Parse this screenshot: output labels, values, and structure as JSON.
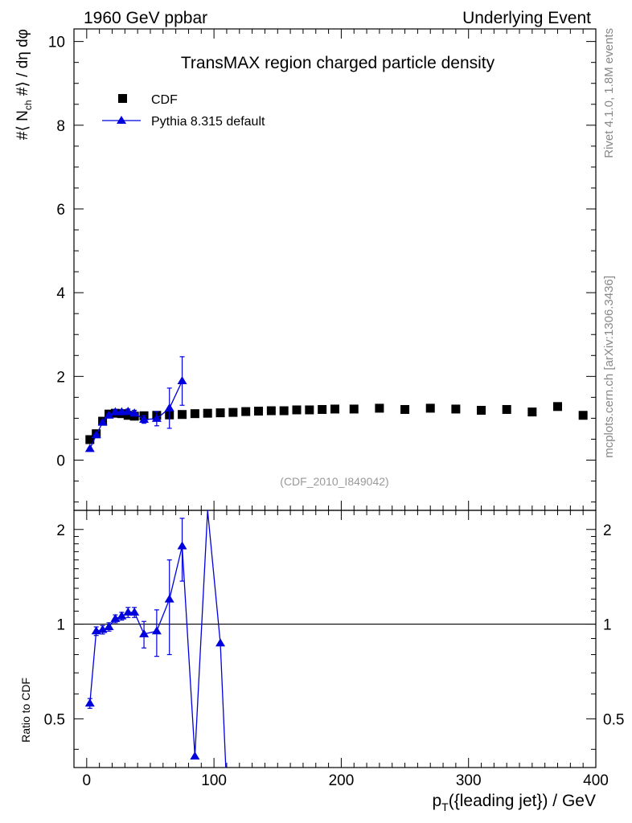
{
  "header": {
    "left": "1960 GeV ppbar",
    "right": "Underlying Event"
  },
  "side": {
    "rivet": "Rivet 4.1.0,  1.8M events",
    "mcplots": "mcplots.cern.ch [arXiv:1306.3436]"
  },
  "labels": {
    "ylabel_main": "#⟨ N_ch #⟩ / dη dφ",
    "ylabel_ratio": "Ratio to CDF",
    "xlabel": "p_T({leading jet}) / GeV"
  },
  "chart_data": {
    "type": "scatter",
    "title": "TransMAX region charged particle density",
    "watermark": "(CDF_2010_I849042)",
    "xlim": [
      -10,
      400
    ],
    "ylim_main": [
      -1.2,
      10.3
    ],
    "ylim_ratio": [
      0.35,
      2.3
    ],
    "x_ticks": [
      "0",
      "100",
      "200",
      "300",
      "400"
    ],
    "y_ticks_main": [
      "0",
      "2",
      "4",
      "6",
      "8",
      "10"
    ],
    "y_ticks_ratio": [
      "0.5",
      "1",
      "2"
    ],
    "series": [
      {
        "name": "CDF",
        "color": "#000000",
        "marker": "square",
        "x": [
          2.5,
          7.5,
          12.5,
          17.5,
          22.5,
          27.5,
          32.5,
          37.5,
          45,
          55,
          65,
          75,
          85,
          95,
          105,
          115,
          125,
          135,
          145,
          155,
          165,
          175,
          185,
          195,
          210,
          230,
          250,
          270,
          290,
          310,
          330,
          350,
          370,
          390
        ],
        "y": [
          0.49,
          0.63,
          0.93,
          1.1,
          1.12,
          1.11,
          1.07,
          1.05,
          1.06,
          1.07,
          1.08,
          1.09,
          1.11,
          1.12,
          1.13,
          1.14,
          1.16,
          1.17,
          1.18,
          1.18,
          1.2,
          1.2,
          1.21,
          1.22,
          1.22,
          1.24,
          1.21,
          1.24,
          1.22,
          1.19,
          1.21,
          1.15,
          1.28,
          1.07
        ]
      },
      {
        "name": "Pythia 8.315 default",
        "color": "#0000dd",
        "marker": "triangle",
        "x": [
          2.5,
          7.5,
          12.5,
          17.5,
          22.5,
          27.5,
          32.5,
          37.5,
          45,
          55,
          65,
          75
        ],
        "y": [
          0.27,
          0.6,
          0.9,
          1.07,
          1.15,
          1.15,
          1.16,
          1.12,
          0.97,
          0.99,
          1.24,
          1.89
        ],
        "yerr": [
          0.02,
          0.03,
          0.04,
          0.04,
          0.05,
          0.05,
          0.06,
          0.07,
          0.09,
          0.17,
          0.48,
          0.58
        ]
      }
    ],
    "ratio": {
      "x": [
        2.5,
        7.5,
        12.5,
        17.5,
        22.5,
        27.5,
        32.5,
        37.5,
        45,
        55,
        65,
        75,
        85,
        95,
        105,
        110
      ],
      "y": [
        0.56,
        0.95,
        0.96,
        0.98,
        1.04,
        1.06,
        1.09,
        1.09,
        0.93,
        0.95,
        1.2,
        1.77,
        0.38,
        2.3,
        0.87,
        0.3
      ],
      "yerr": [
        0.02,
        0.03,
        0.03,
        0.03,
        0.03,
        0.03,
        0.04,
        0.04,
        0.09,
        0.16,
        0.4,
        0.4,
        0,
        0,
        0,
        0
      ],
      "show_marker": [
        true,
        true,
        true,
        true,
        true,
        true,
        true,
        true,
        true,
        true,
        true,
        true,
        true,
        false,
        true,
        false
      ],
      "reference": 1
    }
  }
}
